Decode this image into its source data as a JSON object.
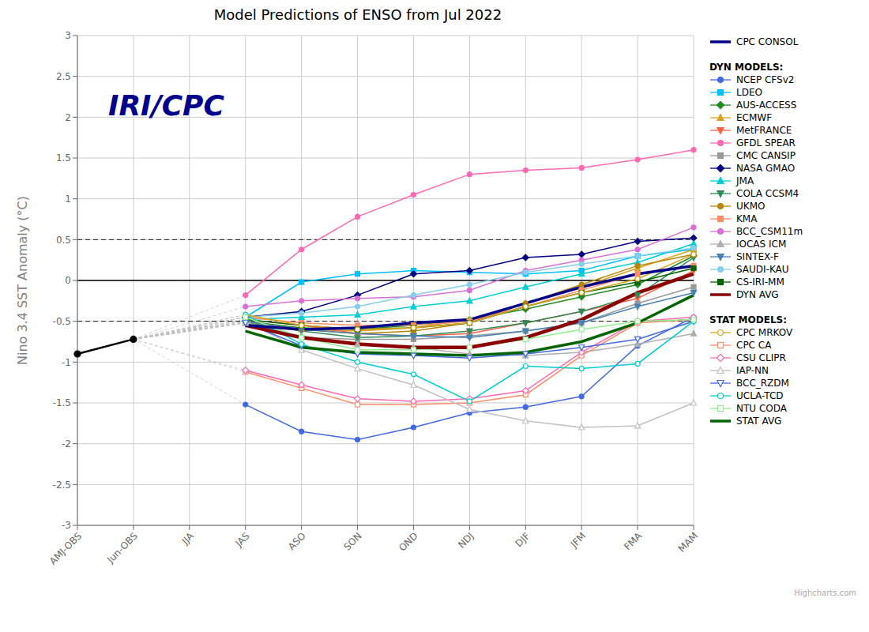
{
  "chart_data": {
    "type": "line",
    "title": "Model Predictions of ENSO from Jul 2022",
    "ylabel": "Nino 3.4 SST Anomaly (°C)",
    "categories": [
      "AMJ-OBS",
      "Jun-OBS",
      "JJA",
      "JAS",
      "ASO",
      "SON",
      "OND",
      "NDJ",
      "DJF",
      "JFM",
      "FMA",
      "MAM"
    ],
    "ylim": [
      -3,
      3
    ],
    "yticks": [
      -3,
      -2.5,
      -2,
      -1.5,
      -1,
      -0.5,
      0,
      0.5,
      1,
      1.5,
      2,
      2.5,
      3
    ],
    "grid": true,
    "legend": "right",
    "annotations": [
      {
        "text": "IRI/CPC",
        "color": "#00008B"
      },
      {
        "text": "Highcharts.com"
      }
    ],
    "reference_lines": [
      {
        "value": 0,
        "color": "#000000",
        "line_style": "solid"
      },
      {
        "value": 0.5,
        "color": "#000000",
        "line_style": "dashed"
      },
      {
        "value": -0.5,
        "color": "#000000",
        "line_style": "dashed"
      }
    ],
    "fan_lines": {
      "color": "#C0C0C0",
      "line_style": "dashed"
    },
    "observations": {
      "color": "#000000",
      "marker": "circle",
      "values": [
        -0.9,
        -0.72,
        null,
        null,
        null,
        null,
        null,
        null,
        null,
        null,
        null,
        null
      ]
    },
    "consensus": {
      "name": "CPC CONSOL",
      "color": "#00008B",
      "values": [
        null,
        null,
        null,
        -0.55,
        -0.6,
        -0.58,
        -0.52,
        -0.48,
        -0.28,
        -0.08,
        0.08,
        0.18
      ]
    },
    "models": [
      {
        "title": "DYN MODELS:",
        "average": {
          "name": "DYN AVG",
          "color": "#8B0000",
          "values": [
            null,
            null,
            null,
            -0.55,
            -0.7,
            -0.78,
            -0.82,
            -0.82,
            -0.7,
            -0.48,
            -0.15,
            0.08
          ]
        },
        "series": [
          {
            "name": "NCEP CFSv2",
            "color": "#4169E1",
            "marker": "circle",
            "values": [
              null,
              null,
              null,
              -1.52,
              -1.85,
              -1.95,
              -1.8,
              -1.62,
              -1.55,
              -1.42,
              -0.8,
              -0.45
            ]
          },
          {
            "name": "LDEO",
            "color": "#00BFFF",
            "marker": "square",
            "values": [
              null,
              null,
              null,
              -0.45,
              -0.02,
              0.08,
              0.12,
              0.1,
              0.08,
              0.12,
              0.3,
              0.38
            ]
          },
          {
            "name": "AUS-ACCESS",
            "color": "#228B22",
            "marker": "diamond",
            "values": [
              null,
              null,
              null,
              -0.5,
              -0.58,
              -0.6,
              -0.55,
              -0.48,
              -0.35,
              -0.2,
              -0.05,
              0.3
            ]
          },
          {
            "name": "ECMWF",
            "color": "#DAA520",
            "marker": "triangle-up",
            "values": [
              null,
              null,
              null,
              -0.52,
              -0.6,
              -0.62,
              -0.58,
              -0.48,
              -0.28,
              -0.08,
              0.15,
              0.38
            ]
          },
          {
            "name": "MetFRANCE",
            "color": "#FF6347",
            "marker": "triangle-down",
            "values": [
              null,
              null,
              null,
              -0.48,
              -0.55,
              -0.65,
              -0.68,
              -0.65,
              -0.52,
              -0.38,
              -0.22,
              0.12
            ]
          },
          {
            "name": "GFDL SPEAR",
            "color": "#FF69B4",
            "marker": "circle",
            "values": [
              null,
              null,
              null,
              -0.18,
              0.38,
              0.78,
              1.05,
              1.3,
              1.35,
              1.38,
              1.48,
              1.6
            ]
          },
          {
            "name": "CMC CANSIP",
            "color": "#999999",
            "marker": "square",
            "values": [
              null,
              null,
              null,
              -0.52,
              -0.7,
              -0.72,
              -0.72,
              -0.68,
              -0.62,
              -0.52,
              -0.28,
              -0.08
            ]
          },
          {
            "name": "NASA GMAO",
            "color": "#000080",
            "marker": "diamond",
            "values": [
              null,
              null,
              null,
              -0.45,
              -0.38,
              -0.18,
              0.08,
              0.12,
              0.28,
              0.32,
              0.48,
              0.52
            ]
          },
          {
            "name": "JMA",
            "color": "#00CED1",
            "marker": "triangle-up",
            "values": [
              null,
              null,
              null,
              -0.48,
              -0.45,
              -0.42,
              -0.32,
              -0.25,
              -0.08,
              0.08,
              0.22,
              0.45
            ]
          },
          {
            "name": "COLA CCSM4",
            "color": "#2E8B57",
            "marker": "triangle-down",
            "values": [
              null,
              null,
              null,
              -0.52,
              -0.62,
              -0.7,
              -0.68,
              -0.62,
              -0.52,
              -0.38,
              -0.18,
              0.28
            ]
          },
          {
            "name": "UKMO",
            "color": "#B8860B",
            "marker": "circle",
            "values": [
              null,
              null,
              null,
              -0.5,
              -0.6,
              -0.65,
              -0.62,
              -0.52,
              -0.28,
              -0.05,
              0.18,
              0.32
            ]
          },
          {
            "name": "KMA",
            "color": "#FF8C69",
            "marker": "square",
            "values": [
              null,
              null,
              null,
              -0.45,
              -0.52,
              -0.55,
              -0.55,
              -0.5,
              -0.32,
              -0.12,
              0.08,
              0.18
            ]
          },
          {
            "name": "BCC_CSM11m",
            "color": "#DA70D6",
            "marker": "circle",
            "values": [
              null,
              null,
              null,
              -0.32,
              -0.25,
              -0.22,
              -0.2,
              -0.12,
              0.12,
              0.25,
              0.38,
              0.65
            ]
          },
          {
            "name": "IOCAS ICM",
            "color": "#B0B0B0",
            "marker": "triangle-up",
            "values": [
              null,
              null,
              null,
              -0.52,
              -0.68,
              -0.78,
              -0.82,
              -0.9,
              -0.92,
              -0.88,
              -0.78,
              -0.65
            ]
          },
          {
            "name": "SINTEX-F",
            "color": "#4682B4",
            "marker": "triangle-down",
            "values": [
              null,
              null,
              null,
              -0.5,
              -0.6,
              -0.65,
              -0.68,
              -0.7,
              -0.62,
              -0.52,
              -0.32,
              -0.15
            ]
          },
          {
            "name": "SAUDI-KAU",
            "color": "#87CEEB",
            "marker": "circle",
            "values": [
              null,
              null,
              null,
              -0.45,
              -0.4,
              -0.32,
              -0.18,
              -0.05,
              0.1,
              0.2,
              0.3,
              0.4
            ]
          },
          {
            "name": "CS-IRI-MM",
            "color": "#006400",
            "marker": "square",
            "values": [
              null,
              null,
              null,
              -0.48,
              -0.55,
              -0.6,
              -0.58,
              -0.52,
              -0.32,
              -0.15,
              -0.02,
              0.15
            ]
          }
        ]
      },
      {
        "title": "STAT MODELS:",
        "average": {
          "name": "STAT AVG",
          "color": "#006400",
          "values": [
            null,
            null,
            null,
            -0.62,
            -0.82,
            -0.88,
            -0.9,
            -0.92,
            -0.88,
            -0.75,
            -0.52,
            -0.18
          ]
        },
        "series": [
          {
            "name": "CPC MRKOV",
            "color": "#DAA520",
            "marker": "circle-open",
            "values": [
              null,
              null,
              null,
              -0.42,
              -0.55,
              -0.6,
              -0.58,
              -0.52,
              -0.32,
              -0.15,
              0.02,
              0.32
            ]
          },
          {
            "name": "CPC CA",
            "color": "#FF8C69",
            "marker": "square-open",
            "values": [
              null,
              null,
              null,
              -1.12,
              -1.32,
              -1.52,
              -1.52,
              -1.5,
              -1.4,
              -0.92,
              -0.52,
              -0.48
            ]
          },
          {
            "name": "CSU CLIPR",
            "color": "#FF69B4",
            "marker": "diamond-open",
            "values": [
              null,
              null,
              null,
              -1.1,
              -1.28,
              -1.45,
              -1.48,
              -1.45,
              -1.35,
              -0.88,
              -0.5,
              -0.45
            ]
          },
          {
            "name": "IAP-NN",
            "color": "#C0C0C0",
            "marker": "triangle-up-open",
            "values": [
              null,
              null,
              null,
              -0.5,
              -0.85,
              -1.08,
              -1.28,
              -1.58,
              -1.72,
              -1.8,
              -1.78,
              -1.5
            ]
          },
          {
            "name": "BCC_RZDM",
            "color": "#4169E1",
            "marker": "triangle-down-open",
            "values": [
              null,
              null,
              null,
              -0.52,
              -0.8,
              -0.9,
              -0.92,
              -0.95,
              -0.9,
              -0.82,
              -0.72,
              -0.5
            ]
          },
          {
            "name": "UCLA-TCD",
            "color": "#00CED1",
            "marker": "circle-open",
            "values": [
              null,
              null,
              null,
              -0.42,
              -0.78,
              -1.0,
              -1.15,
              -1.48,
              -1.05,
              -1.08,
              -1.02,
              -0.5
            ]
          },
          {
            "name": "NTU CODA",
            "color": "#90EE90",
            "marker": "square-open",
            "values": [
              null,
              null,
              null,
              -0.45,
              -0.7,
              -0.85,
              -0.85,
              -0.82,
              -0.72,
              -0.6,
              -0.5,
              -0.48
            ]
          }
        ]
      }
    ]
  }
}
